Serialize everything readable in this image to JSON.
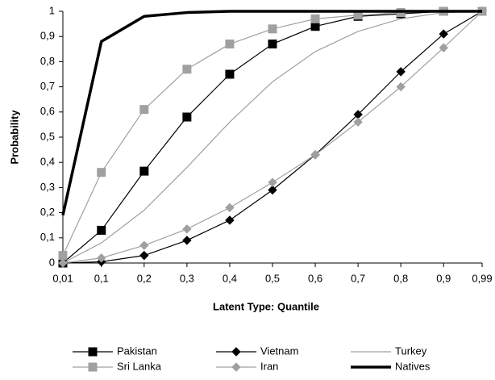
{
  "chart_data": {
    "type": "line",
    "x_label": "Latent Type: Quantile",
    "y_label": "Probability",
    "x": [
      0.01,
      0.1,
      0.2,
      0.3,
      0.4,
      0.5,
      0.6,
      0.7,
      0.8,
      0.9,
      0.99
    ],
    "xlim": [
      0.01,
      0.99
    ],
    "xticks": [
      {
        "value": 0.01,
        "label": "0,01"
      },
      {
        "value": 0.1,
        "label": "0,1"
      },
      {
        "value": 0.2,
        "label": "0,2"
      },
      {
        "value": 0.3,
        "label": "0,3"
      },
      {
        "value": 0.4,
        "label": "0,4"
      },
      {
        "value": 0.5,
        "label": "0,5"
      },
      {
        "value": 0.6,
        "label": "0,6"
      },
      {
        "value": 0.7,
        "label": "0,7"
      },
      {
        "value": 0.8,
        "label": "0,8"
      },
      {
        "value": 0.9,
        "label": "0,9"
      },
      {
        "value": 0.99,
        "label": "0,99"
      }
    ],
    "ylim": [
      0,
      1
    ],
    "yticks": [
      0,
      {
        "value": 0.1,
        "label": "0,1"
      },
      {
        "value": 0.2,
        "label": "0,2"
      },
      {
        "value": 0.3,
        "label": "0,3"
      },
      {
        "value": 0.4,
        "label": "0,4"
      },
      {
        "value": 0.5,
        "label": "0,5"
      },
      {
        "value": 0.6,
        "label": "0,6"
      },
      {
        "value": 0.7,
        "label": "0,7"
      },
      {
        "value": 0.8,
        "label": "0,8"
      },
      {
        "value": 0.9,
        "label": "0,9"
      },
      1
    ],
    "grid": false,
    "legend": "bottom",
    "series": [
      {
        "name": "Pakistan",
        "color": "#000000",
        "marker": "square",
        "line_width": 1.2,
        "values": [
          0,
          0.13,
          0.365,
          0.58,
          0.75,
          0.87,
          0.94,
          0.98,
          0.99,
          1,
          1
        ]
      },
      {
        "name": "Vietnam",
        "color": "#000000",
        "marker": "diamond",
        "line_width": 1.2,
        "values": [
          0,
          0.005,
          0.03,
          0.09,
          0.17,
          0.29,
          0.43,
          0.59,
          0.76,
          0.91,
          1
        ]
      },
      {
        "name": "Turkey",
        "color": "#a0a0a0",
        "marker": "none",
        "line_width": 1.2,
        "values": [
          0,
          0.08,
          0.21,
          0.38,
          0.56,
          0.72,
          0.84,
          0.92,
          0.97,
          0.995,
          1
        ]
      },
      {
        "name": "Sri Lanka",
        "color": "#a0a0a0",
        "marker": "square",
        "line_width": 1.2,
        "values": [
          0.03,
          0.36,
          0.61,
          0.77,
          0.87,
          0.93,
          0.97,
          0.985,
          0.995,
          1,
          1
        ]
      },
      {
        "name": "Iran",
        "color": "#a0a0a0",
        "marker": "diamond",
        "line_width": 1.2,
        "values": [
          0,
          0.02,
          0.07,
          0.135,
          0.22,
          0.32,
          0.43,
          0.56,
          0.7,
          0.855,
          1
        ]
      },
      {
        "name": "Natives",
        "color": "#000000",
        "marker": "none",
        "line_width": 3.5,
        "values": [
          0.19,
          0.88,
          0.98,
          0.995,
          1,
          1,
          1,
          1,
          1,
          1,
          1
        ]
      }
    ]
  }
}
